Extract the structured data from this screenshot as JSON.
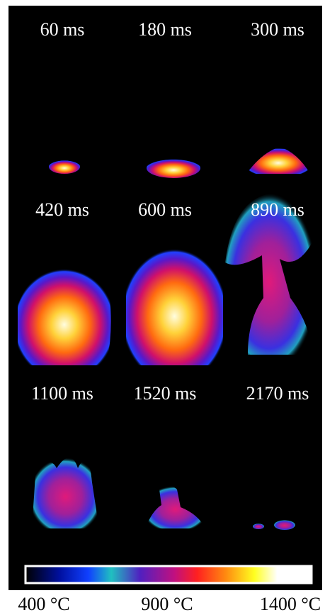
{
  "frames": [
    {
      "label": "60 ms"
    },
    {
      "label": "180 ms"
    },
    {
      "label": "300 ms"
    },
    {
      "label": "420 ms"
    },
    {
      "label": "600 ms"
    },
    {
      "label": "890 ms"
    },
    {
      "label": "1100 ms"
    },
    {
      "label": "1520 ms"
    },
    {
      "label": "2170 ms"
    }
  ],
  "colorbar": {
    "labels": [
      "400 °C",
      "900 °C",
      "1400 °C"
    ]
  }
}
